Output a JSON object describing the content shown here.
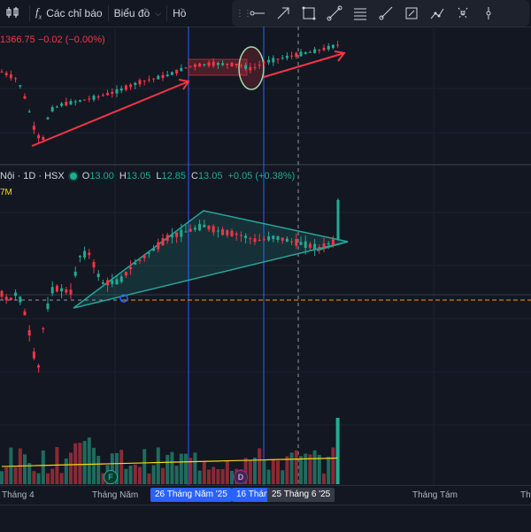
{
  "toolbar": {
    "indicators_label": "Các chỉ báo",
    "chart_label": "Biểu đồ",
    "cut_label": "Hồ"
  },
  "pane1": {
    "price_info": "1366.75  −0.02 (−0.00%)"
  },
  "pane2": {
    "symbol": "Nội · 1D · HSX",
    "open_label": "O",
    "open": "13.00",
    "high_label": "H",
    "high": "13.05",
    "low_label": "L",
    "low": "12.85",
    "close_label": "C",
    "close": "13.05",
    "change": "+0.05 (+0.38%)",
    "volume_tag": "7M"
  },
  "markers": {
    "f": "F",
    "d": "D"
  },
  "xaxis": {
    "labels": [
      "Tháng 4",
      "Tháng Năm",
      "Tháng Tám",
      "Th"
    ],
    "highlight1": "26 Tháng Năm '25",
    "highlight2": "16 Thán",
    "highlight3": "25 Tháng 6 '25"
  },
  "colors": {
    "up": "#22ab94",
    "down": "#f23645",
    "bg": "#131722",
    "accent": "#2962ff",
    "orange": "#ff9800",
    "yellow": "#f5d90a"
  }
}
